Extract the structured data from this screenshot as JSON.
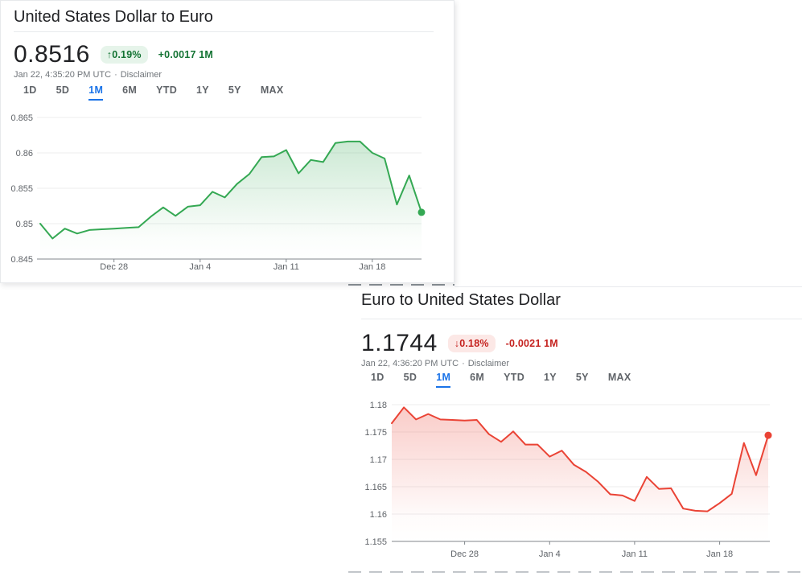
{
  "cards": [
    {
      "title": "United States Dollar to Euro",
      "price": "0.8516",
      "change_arrow": "↑",
      "change_percent": "0.19%",
      "change_text": "+0.0017 1M",
      "direction": "up",
      "timestamp": "Jan 22, 4:35:20 PM UTC",
      "dot": "·",
      "disclaimer": "Disclaimer",
      "tabs": [
        "1D",
        "5D",
        "1M",
        "6M",
        "YTD",
        "1Y",
        "5Y",
        "MAX"
      ],
      "active_tab": "1M"
    },
    {
      "title": "Euro to United States Dollar",
      "price": "1.1744",
      "change_arrow": "↓",
      "change_percent": "0.18%",
      "change_text": "-0.0021 1M",
      "direction": "down",
      "timestamp": "Jan 22, 4:36:20 PM UTC",
      "dot": "·",
      "disclaimer": "Disclaimer",
      "tabs": [
        "1D",
        "5D",
        "1M",
        "6M",
        "YTD",
        "1Y",
        "5Y",
        "MAX"
      ],
      "active_tab": "1M"
    }
  ],
  "chart_data": [
    {
      "type": "area",
      "title": "United States Dollar to Euro — 1M",
      "line_color": "#34a853",
      "fill_opacity": 0.25,
      "ylim": [
        0.845,
        0.865
      ],
      "y_ticks": [
        {
          "label": "0.845",
          "value": 0.845
        },
        {
          "label": "0.85",
          "value": 0.85
        },
        {
          "label": "0.855",
          "value": 0.855
        },
        {
          "label": "0.86",
          "value": 0.86
        },
        {
          "label": "0.865",
          "value": 0.865
        }
      ],
      "x_ticks": [
        {
          "label": "Dec 28",
          "index": 6
        },
        {
          "label": "Jan 4",
          "index": 13
        },
        {
          "label": "Jan 11",
          "index": 20
        },
        {
          "label": "Jan 18",
          "index": 27
        }
      ],
      "values": [
        0.85,
        0.8479,
        0.8493,
        0.8486,
        0.8491,
        0.8492,
        0.8493,
        0.8494,
        0.8495,
        0.851,
        0.8523,
        0.8511,
        0.8524,
        0.8526,
        0.8545,
        0.8537,
        0.8556,
        0.857,
        0.8594,
        0.8595,
        0.8604,
        0.8571,
        0.859,
        0.8587,
        0.8614,
        0.8616,
        0.8616,
        0.86,
        0.8592,
        0.8527,
        0.8568,
        0.8516
      ],
      "end_value": 0.8516,
      "grid": true,
      "legend": "none"
    },
    {
      "type": "area",
      "title": "Euro to United States Dollar — 1M",
      "line_color": "#ea4335",
      "fill_opacity": 0.27,
      "ylim": [
        1.155,
        1.18
      ],
      "y_ticks": [
        {
          "label": "1.155",
          "value": 1.155
        },
        {
          "label": "1.16",
          "value": 1.16
        },
        {
          "label": "1.165",
          "value": 1.165
        },
        {
          "label": "1.17",
          "value": 1.17
        },
        {
          "label": "1.175",
          "value": 1.175
        },
        {
          "label": "1.18",
          "value": 1.18
        }
      ],
      "x_ticks": [
        {
          "label": "Dec 28",
          "index": 6
        },
        {
          "label": "Jan 4",
          "index": 13
        },
        {
          "label": "Jan 11",
          "index": 20
        },
        {
          "label": "Jan 18",
          "index": 27
        }
      ],
      "values": [
        1.1766,
        1.1795,
        1.1773,
        1.1783,
        1.1773,
        1.1772,
        1.1771,
        1.1772,
        1.1746,
        1.1732,
        1.1751,
        1.1727,
        1.1727,
        1.1705,
        1.1716,
        1.169,
        1.1677,
        1.1659,
        1.1636,
        1.1634,
        1.1624,
        1.1668,
        1.1646,
        1.1647,
        1.161,
        1.1606,
        1.1605,
        1.162,
        1.1637,
        1.173,
        1.1671,
        1.1744
      ],
      "end_value": 1.1744,
      "grid": true,
      "legend": "none"
    }
  ],
  "colors": {
    "up_text": "#137333",
    "up_pill_bg": "#e6f4ea",
    "down_text": "#c5221f",
    "down_pill_bg": "#fce8e6",
    "active_tab": "#1a73e8",
    "green_line": "#34a853",
    "red_line": "#ea4335",
    "axis_text": "#5f6368",
    "axis_line": "#80868b"
  }
}
